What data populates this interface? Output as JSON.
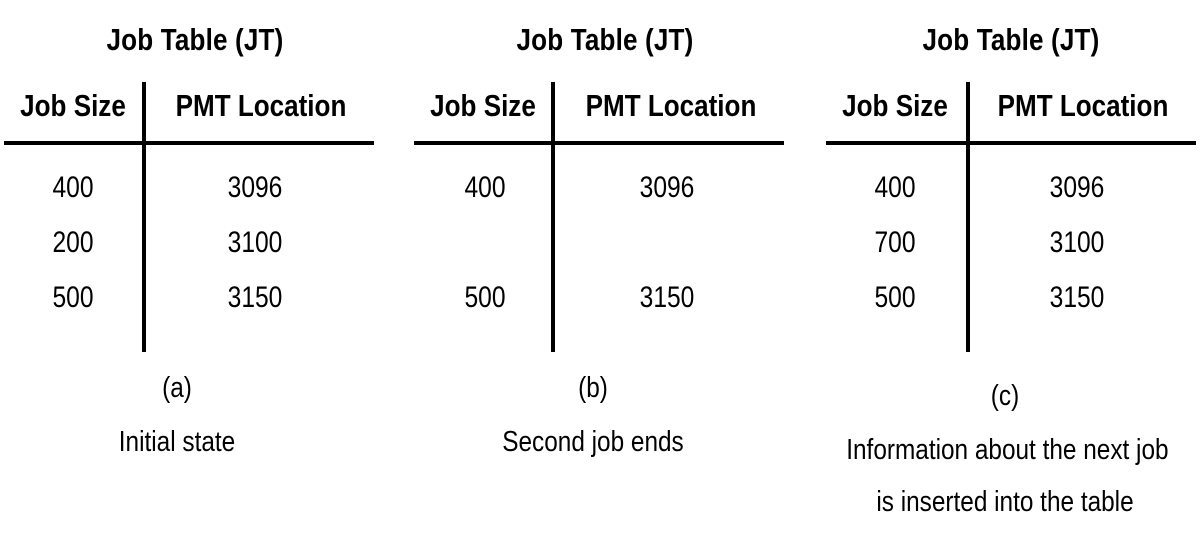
{
  "panels": [
    {
      "title": "Job Table (JT)",
      "col_size": "Job Size",
      "col_pmt": "PMT Location",
      "rows": [
        {
          "size": "400",
          "pmt": "3096"
        },
        {
          "size": "200",
          "pmt": "3100"
        },
        {
          "size": "500",
          "pmt": "3150"
        }
      ],
      "label": "(a)",
      "caption_lines": [
        "Initial state"
      ]
    },
    {
      "title": "Job Table (JT)",
      "col_size": "Job Size",
      "col_pmt": "PMT Location",
      "rows": [
        {
          "size": "400",
          "pmt": "3096"
        },
        {
          "size": "",
          "pmt": ""
        },
        {
          "size": "500",
          "pmt": "3150"
        }
      ],
      "label": "(b)",
      "caption_lines": [
        "Second job ends"
      ]
    },
    {
      "title": "Job Table (JT)",
      "col_size": "Job Size",
      "col_pmt": "PMT Location",
      "rows": [
        {
          "size": "400",
          "pmt": "3096"
        },
        {
          "size": "700",
          "pmt": "3100"
        },
        {
          "size": "500",
          "pmt": "3150"
        }
      ],
      "label": "(c)",
      "caption_lines": [
        "Information about the next job",
        "is inserted into the table"
      ]
    }
  ]
}
